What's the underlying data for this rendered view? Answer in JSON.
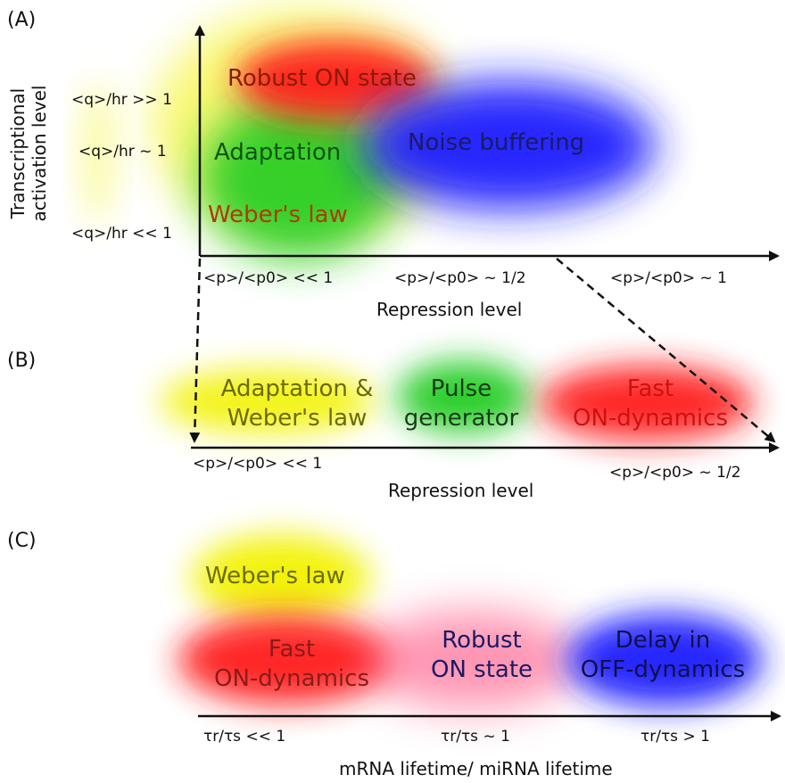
{
  "colors": {
    "red": "#ff1a1a",
    "blue": "#1a1aff",
    "green": "#22cc22",
    "yellow": "#f2f200",
    "text_dark_red": "#8b1a00",
    "text_dark_green": "#115511",
    "text_navy": "#1a1a66",
    "text_olive": "#6b6b00",
    "text_red": "#cc1111"
  },
  "panel_a": {
    "label": "(A)",
    "y_axis_title_line1": "Transcriptional",
    "y_axis_title_line2": "activation level",
    "y_ticks": [
      "<q>/hr >> 1",
      "<q>/hr ~ 1",
      "<q>/hr << 1"
    ],
    "x_ticks": [
      "<p>/<p0> << 1",
      "<p>/<p0> ~ 1/2",
      "<p>/<p0> ~ 1"
    ],
    "x_axis_title": "Repression level",
    "regions": {
      "robust_on": "Robust ON state",
      "adaptation": "Adaptation",
      "noise_buffering": "Noise buffering",
      "webers_law": "Weber's law"
    }
  },
  "panel_b": {
    "label": "(B)",
    "x_ticks": [
      "<p>/<p0> << 1",
      "<p>/<p0> ~ 1/2"
    ],
    "x_axis_title": "Repression level",
    "regions": {
      "adaptation_webers_line1": "Adaptation &",
      "adaptation_webers_line2": "Weber's law",
      "pulse_line1": "Pulse",
      "pulse_line2": "generator",
      "fast_on_line1": "Fast",
      "fast_on_line2": "ON-dynamics"
    }
  },
  "panel_c": {
    "label": "(C)",
    "x_ticks": [
      "τr/τs << 1",
      "τr/τs ~ 1",
      "τr/τs > 1"
    ],
    "x_axis_title": "mRNA lifetime/ miRNA lifetime",
    "regions": {
      "webers_law": "Weber's law",
      "fast_on_line1": "Fast",
      "fast_on_line2": "ON-dynamics",
      "robust_on_line1": "Robust",
      "robust_on_line2": "ON state",
      "delay_off_line1": "Delay in",
      "delay_off_line2": "OFF-dynamics"
    }
  }
}
